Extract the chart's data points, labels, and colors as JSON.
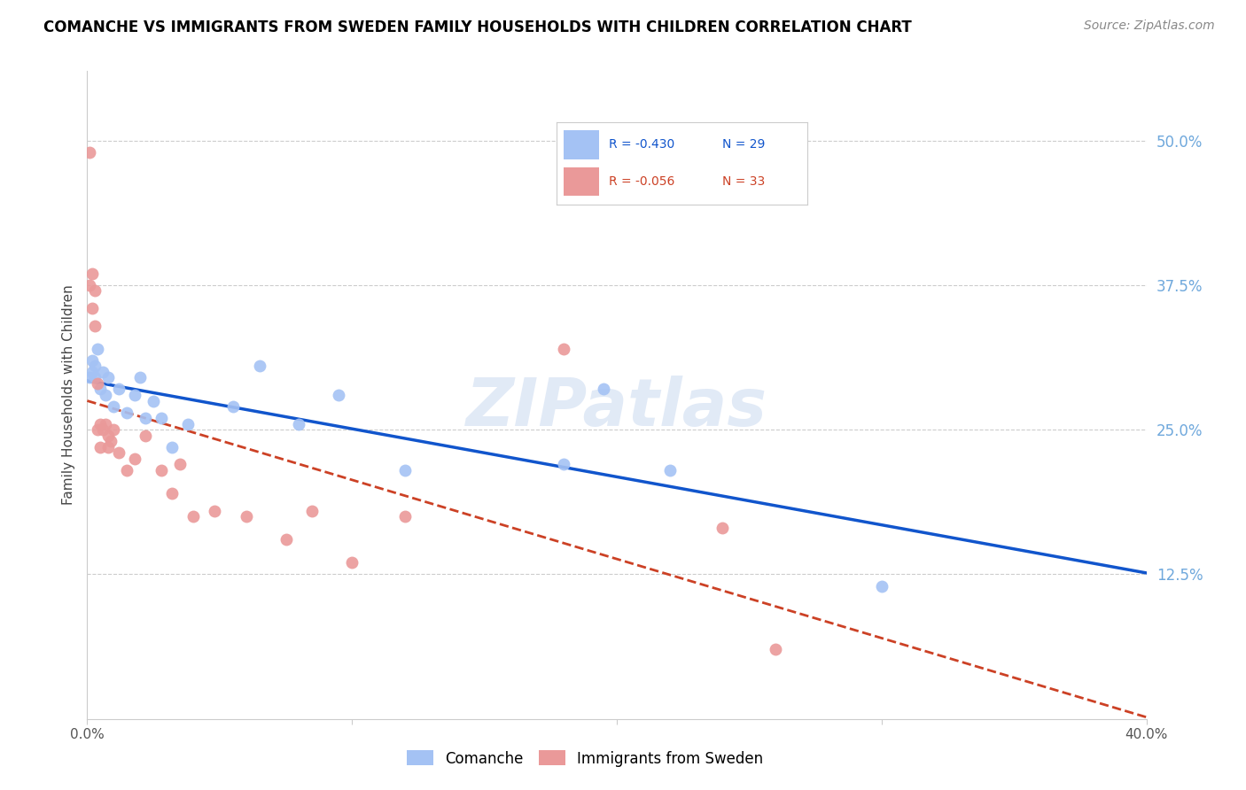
{
  "title": "COMANCHE VS IMMIGRANTS FROM SWEDEN FAMILY HOUSEHOLDS WITH CHILDREN CORRELATION CHART",
  "source": "Source: ZipAtlas.com",
  "ylabel": "Family Households with Children",
  "right_yticks": [
    "50.0%",
    "37.5%",
    "25.0%",
    "12.5%"
  ],
  "right_ytick_vals": [
    0.5,
    0.375,
    0.25,
    0.125
  ],
  "watermark": "ZIPatlas",
  "legend_blue_r": "R = -0.430",
  "legend_blue_n": "N = 29",
  "legend_pink_r": "R = -0.056",
  "legend_pink_n": "N = 33",
  "blue_color": "#a4c2f4",
  "pink_color": "#ea9999",
  "blue_line_color": "#1155cc",
  "pink_line_color": "#cc4125",
  "background_color": "#ffffff",
  "grid_color": "#cccccc",
  "title_color": "#000000",
  "right_axis_color": "#6fa8dc",
  "comanche_x": [
    0.001,
    0.002,
    0.002,
    0.003,
    0.003,
    0.004,
    0.005,
    0.006,
    0.007,
    0.008,
    0.01,
    0.012,
    0.015,
    0.018,
    0.02,
    0.022,
    0.025,
    0.028,
    0.032,
    0.038,
    0.055,
    0.065,
    0.08,
    0.095,
    0.12,
    0.18,
    0.195,
    0.22,
    0.3
  ],
  "comanche_y": [
    0.295,
    0.31,
    0.3,
    0.305,
    0.295,
    0.32,
    0.285,
    0.3,
    0.28,
    0.295,
    0.27,
    0.285,
    0.265,
    0.28,
    0.295,
    0.26,
    0.275,
    0.26,
    0.235,
    0.255,
    0.27,
    0.305,
    0.255,
    0.28,
    0.215,
    0.22,
    0.285,
    0.215,
    0.115
  ],
  "sweden_x": [
    0.001,
    0.001,
    0.002,
    0.002,
    0.003,
    0.003,
    0.004,
    0.004,
    0.005,
    0.005,
    0.006,
    0.007,
    0.008,
    0.008,
    0.009,
    0.01,
    0.012,
    0.015,
    0.018,
    0.022,
    0.028,
    0.032,
    0.035,
    0.04,
    0.048,
    0.06,
    0.075,
    0.085,
    0.1,
    0.12,
    0.18,
    0.24,
    0.26
  ],
  "sweden_y": [
    0.49,
    0.375,
    0.385,
    0.355,
    0.37,
    0.34,
    0.29,
    0.25,
    0.255,
    0.235,
    0.25,
    0.255,
    0.245,
    0.235,
    0.24,
    0.25,
    0.23,
    0.215,
    0.225,
    0.245,
    0.215,
    0.195,
    0.22,
    0.175,
    0.18,
    0.175,
    0.155,
    0.18,
    0.135,
    0.175,
    0.32,
    0.165,
    0.06
  ],
  "xlim": [
    0.0,
    0.4
  ],
  "ylim": [
    0.0,
    0.56
  ],
  "figsize": [
    14.06,
    8.92
  ],
  "dpi": 100
}
